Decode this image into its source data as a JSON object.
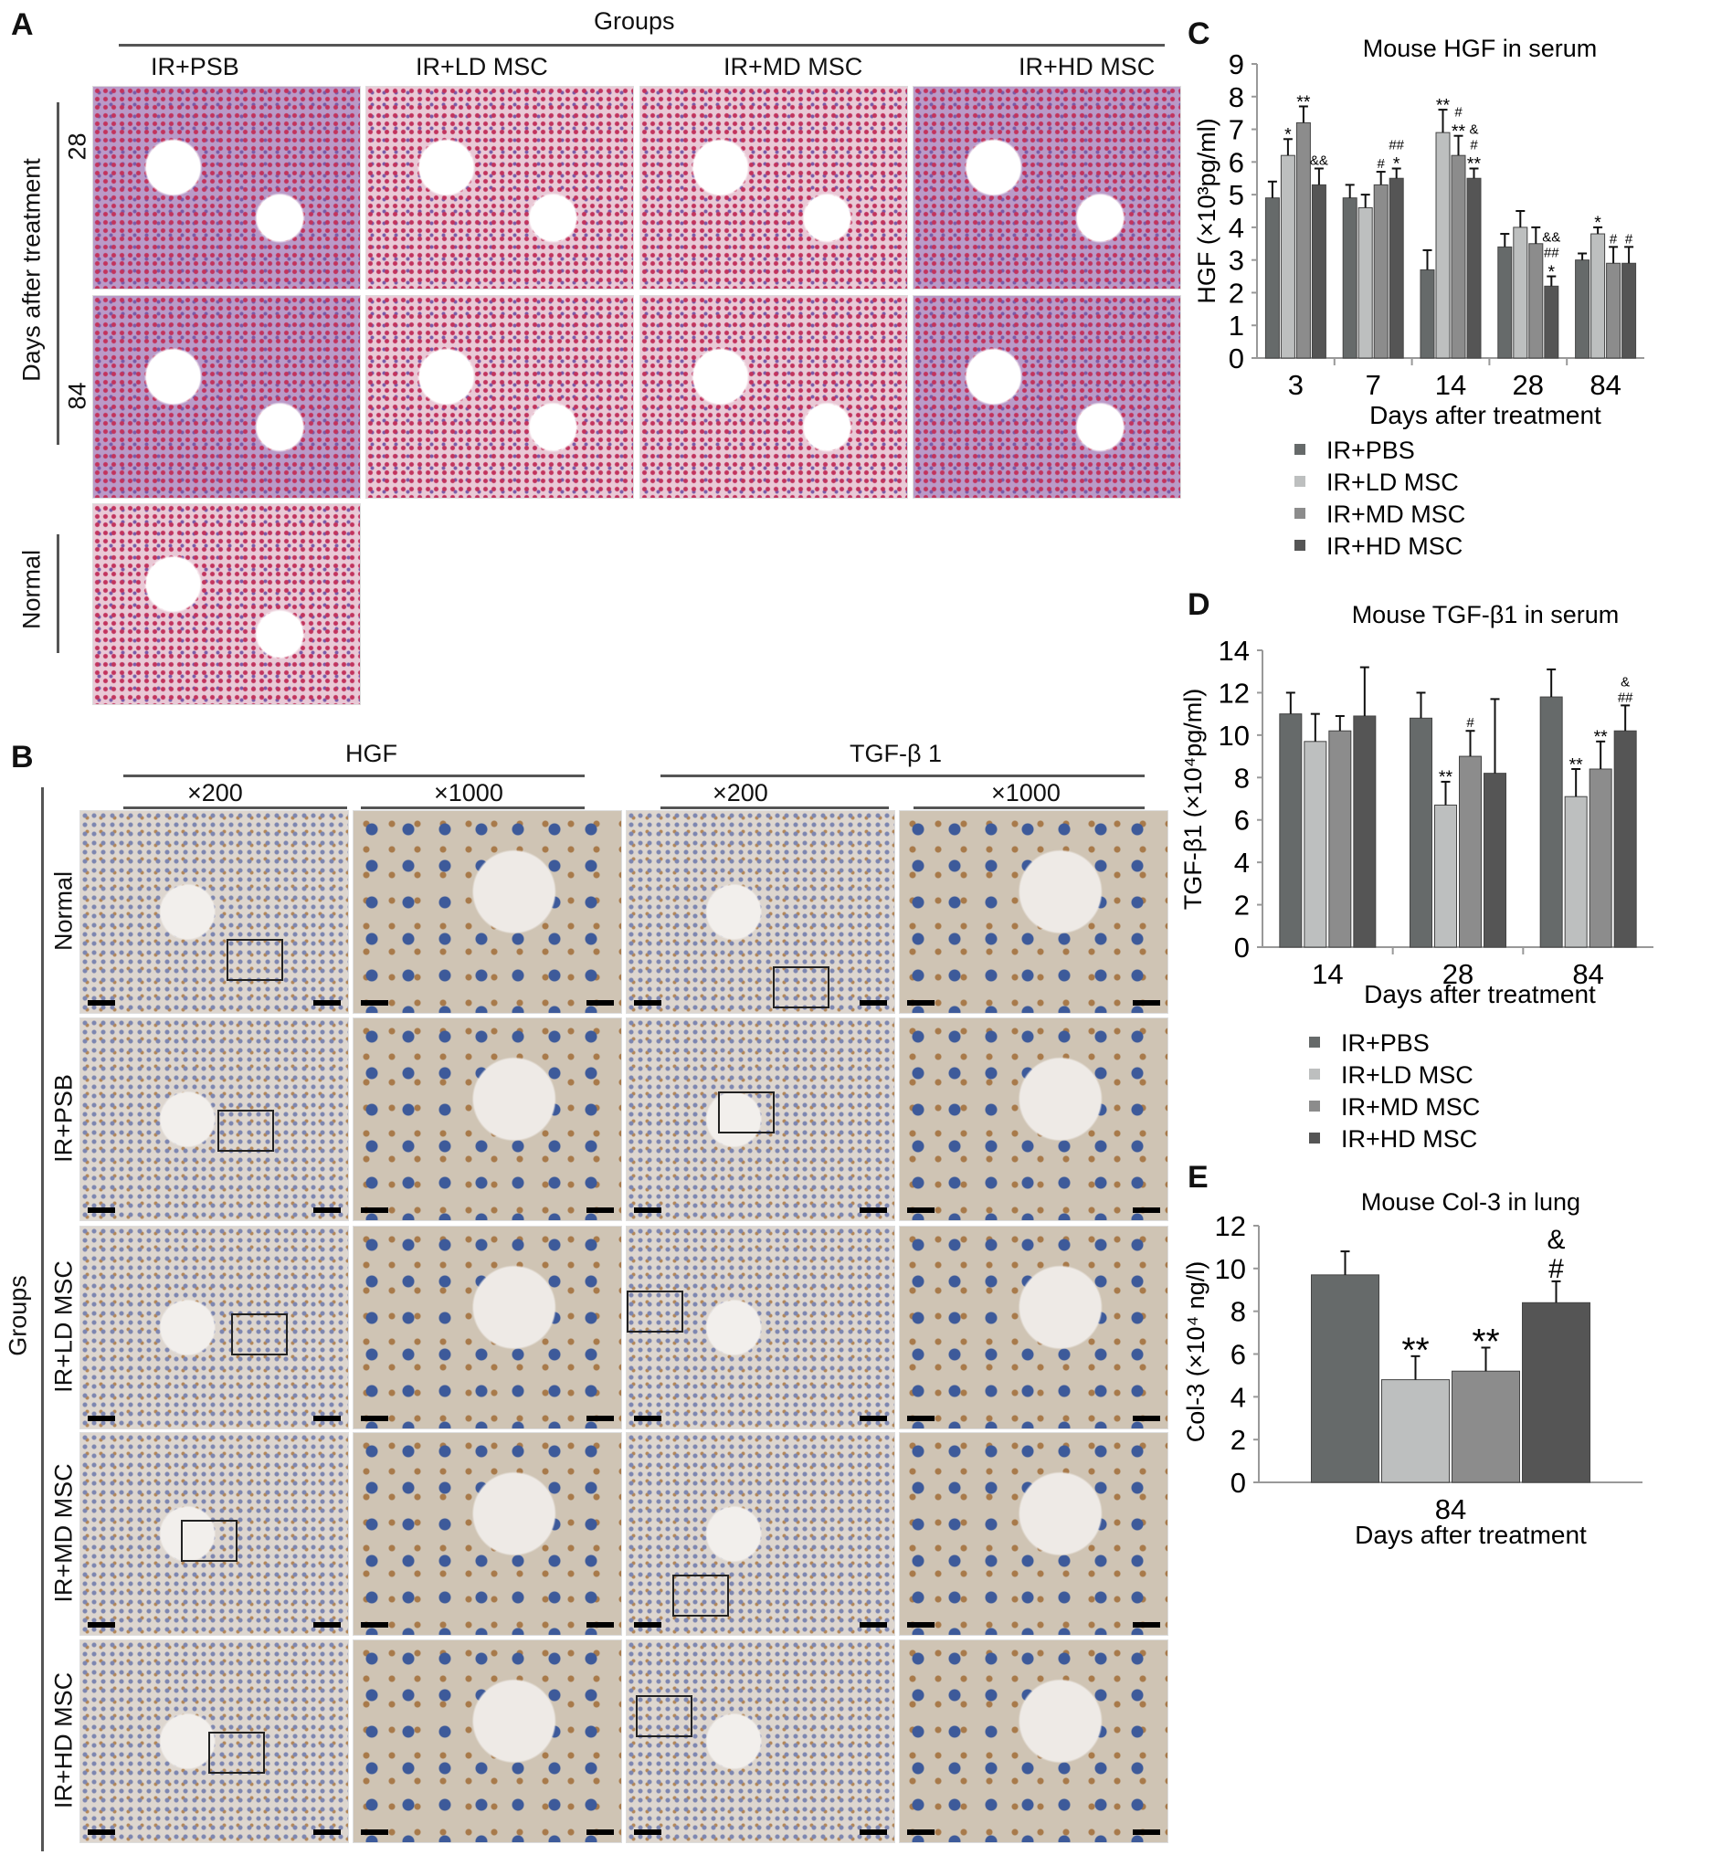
{
  "panelA": {
    "label": "A",
    "groups_title": "Groups",
    "columns": [
      "IR+PSB",
      "IR+LD MSC",
      "IR+MD MSC",
      "IR+HD MSC"
    ],
    "side_title": "Days after treatment",
    "rows": [
      "28",
      "84"
    ],
    "normal": "Normal"
  },
  "panelB": {
    "label": "B",
    "markers": [
      "HGF",
      "TGF-β 1"
    ],
    "magnifications": [
      "×200",
      "×1000",
      "×200",
      "×1000"
    ],
    "side_title": "Groups",
    "rows": [
      "Normal",
      "IR+PSB",
      "IR+LD MSC",
      "IR+MD MSC",
      "IR+HD MSC"
    ]
  },
  "colors": {
    "IR+PBS": "#666a6a",
    "IR+LD MSC": "#bdbfbf",
    "IR+MD MSC": "#8c8c8c",
    "IR+HD MSC": "#555555"
  },
  "chart_data": [
    {
      "panel": "C",
      "type": "bar",
      "title": "Mouse HGF in serum",
      "ylabel": "HGF (×10³pg/ml)",
      "xlabel": "Days after treatment",
      "categories": [
        "3",
        "7",
        "14",
        "28",
        "84"
      ],
      "ylim": [
        0,
        9
      ],
      "yticks": [
        0,
        1,
        2,
        3,
        4,
        5,
        6,
        7,
        8,
        9
      ],
      "legend": "bottom",
      "series": [
        {
          "name": "IR+PBS",
          "values": [
            4.9,
            4.9,
            2.7,
            3.4,
            3.0
          ],
          "error_top": [
            5.4,
            5.3,
            3.3,
            3.8,
            3.2
          ],
          "annotations": [
            "",
            "",
            "",
            "",
            ""
          ]
        },
        {
          "name": "IR+LD MSC",
          "values": [
            6.2,
            4.6,
            6.9,
            4.0,
            3.8
          ],
          "error_top": [
            6.7,
            5.0,
            7.6,
            4.5,
            4.0
          ],
          "annotations": [
            "*",
            "",
            "**",
            "",
            "*"
          ]
        },
        {
          "name": "IR+MD MSC",
          "values": [
            7.2,
            5.3,
            6.2,
            3.5,
            2.9
          ],
          "error_top": [
            7.7,
            5.7,
            6.8,
            4.0,
            3.4
          ],
          "annotations": [
            "**",
            "#",
            "#\n**",
            "",
            "#"
          ]
        },
        {
          "name": "IR+HD MSC",
          "values": [
            5.3,
            5.5,
            5.5,
            2.2,
            2.9
          ],
          "error_top": [
            5.8,
            5.8,
            5.8,
            2.5,
            3.4
          ],
          "annotations": [
            "&&",
            "##\n*",
            "&\n#\n**",
            "&&\n##\n*",
            "#"
          ]
        }
      ]
    },
    {
      "panel": "D",
      "type": "bar",
      "title": "Mouse TGF-β1 in serum",
      "ylabel": "TGF-β1 (×10⁴pg/ml)",
      "xlabel": "Days after treatment",
      "categories": [
        "14",
        "28",
        "84"
      ],
      "ylim": [
        0,
        14
      ],
      "yticks": [
        0,
        2,
        4,
        6,
        8,
        10,
        12,
        14
      ],
      "legend": "bottom",
      "series": [
        {
          "name": "IR+PBS",
          "values": [
            11.0,
            10.8,
            11.8
          ],
          "error_top": [
            12.0,
            12.0,
            13.1
          ],
          "annotations": [
            "",
            "",
            ""
          ]
        },
        {
          "name": "IR+LD MSC",
          "values": [
            9.7,
            6.7,
            7.1
          ],
          "error_top": [
            11.0,
            7.8,
            8.4
          ],
          "annotations": [
            "",
            "**",
            "**"
          ]
        },
        {
          "name": "IR+MD MSC",
          "values": [
            10.2,
            9.0,
            8.4
          ],
          "error_top": [
            10.9,
            10.2,
            9.7
          ],
          "annotations": [
            "",
            "#",
            "**"
          ]
        },
        {
          "name": "IR+HD MSC",
          "values": [
            10.9,
            8.2,
            10.2
          ],
          "error_top": [
            13.2,
            11.7,
            11.4
          ],
          "annotations": [
            "",
            "",
            "&\n##"
          ]
        }
      ]
    },
    {
      "panel": "E",
      "type": "bar",
      "title": "Mouse Col-3 in lung",
      "ylabel": "Col-3 (×10⁴ ng/l)",
      "xlabel": "Days after treatment",
      "categories": [
        "84"
      ],
      "ylim": [
        0,
        12
      ],
      "yticks": [
        0,
        2,
        4,
        6,
        8,
        10,
        12
      ],
      "series": [
        {
          "name": "IR+PBS",
          "values": [
            9.7
          ],
          "error_top": [
            10.8
          ],
          "annotations": [
            ""
          ]
        },
        {
          "name": "IR+LD MSC",
          "values": [
            4.8
          ],
          "error_top": [
            5.9
          ],
          "annotations": [
            "**"
          ]
        },
        {
          "name": "IR+MD MSC",
          "values": [
            5.2
          ],
          "error_top": [
            6.3
          ],
          "annotations": [
            "**"
          ]
        },
        {
          "name": "IR+HD MSC",
          "values": [
            8.4
          ],
          "error_top": [
            9.4
          ],
          "annotations": [
            "&\n#"
          ]
        }
      ]
    }
  ]
}
